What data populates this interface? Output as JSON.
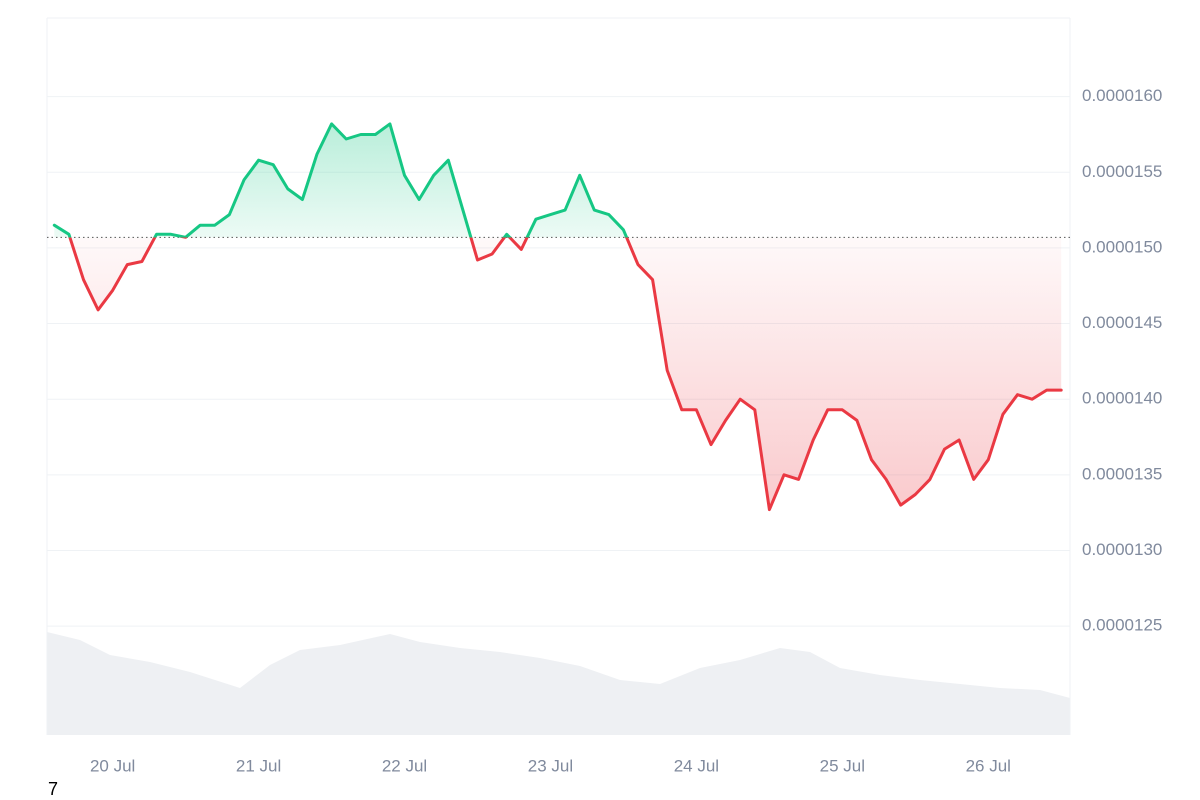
{
  "chart_data": {
    "type": "line",
    "x": [
      19.6,
      19.7,
      19.8,
      19.9,
      20.0,
      20.1,
      20.2,
      20.3,
      20.4,
      20.5,
      20.6,
      20.7,
      20.8,
      20.9,
      21.0,
      21.1,
      21.2,
      21.3,
      21.4,
      21.5,
      21.6,
      21.7,
      21.8,
      21.9,
      22.0,
      22.1,
      22.2,
      22.3,
      22.4,
      22.5,
      22.6,
      22.7,
      22.8,
      22.9,
      23.0,
      23.1,
      23.2,
      23.3,
      23.4,
      23.5,
      23.6,
      23.7,
      23.8,
      23.9,
      24.0,
      24.1,
      24.2,
      24.3,
      24.4,
      24.5,
      24.6,
      24.7,
      24.8,
      24.9,
      25.0,
      25.1,
      25.2,
      25.3,
      25.4,
      25.5,
      25.6,
      25.7,
      25.8,
      25.9,
      26.0,
      26.1,
      26.2,
      26.3,
      26.4,
      26.5
    ],
    "values": [
      1.515e-05,
      1.509e-05,
      1.479e-05,
      1.459e-05,
      1.472e-05,
      1.489e-05,
      1.491e-05,
      1.509e-05,
      1.509e-05,
      1.507e-05,
      1.515e-05,
      1.515e-05,
      1.522e-05,
      1.545e-05,
      1.558e-05,
      1.555e-05,
      1.539e-05,
      1.532e-05,
      1.562e-05,
      1.582e-05,
      1.572e-05,
      1.575e-05,
      1.575e-05,
      1.582e-05,
      1.548e-05,
      1.532e-05,
      1.548e-05,
      1.558e-05,
      1.525e-05,
      1.492e-05,
      1.496e-05,
      1.509e-05,
      1.499e-05,
      1.519e-05,
      1.522e-05,
      1.525e-05,
      1.548e-05,
      1.525e-05,
      1.522e-05,
      1.512e-05,
      1.489e-05,
      1.479e-05,
      1.419e-05,
      1.393e-05,
      1.393e-05,
      1.37e-05,
      1.386e-05,
      1.4e-05,
      1.393e-05,
      1.327e-05,
      1.35e-05,
      1.347e-05,
      1.373e-05,
      1.393e-05,
      1.393e-05,
      1.386e-05,
      1.36e-05,
      1.347e-05,
      1.33e-05,
      1.337e-05,
      1.347e-05,
      1.367e-05,
      1.373e-05,
      1.347e-05,
      1.36e-05,
      1.39e-05,
      1.403e-05,
      1.4e-05,
      1.406e-05,
      1.406e-05
    ],
    "baseline": 1.507e-05,
    "up_color": "#16c784",
    "down_color": "#ea3943",
    "xlim": [
      19.55,
      26.56
    ],
    "xticks": [
      {
        "value": 20,
        "label": "20 Jul"
      },
      {
        "value": 21,
        "label": "21 Jul"
      },
      {
        "value": 22,
        "label": "22 Jul"
      },
      {
        "value": 23,
        "label": "23 Jul"
      },
      {
        "value": 24,
        "label": "24 Jul"
      },
      {
        "value": 25,
        "label": "25 Jul"
      },
      {
        "value": 26,
        "label": "26 Jul"
      }
    ],
    "ylim": [
      1.178e-05,
      1.652e-05
    ],
    "yticks": [
      {
        "value": 1.6e-05,
        "label": "0.0000160"
      },
      {
        "value": 1.55e-05,
        "label": "0.0000155"
      },
      {
        "value": 1.5e-05,
        "label": "0.0000150"
      },
      {
        "value": 1.45e-05,
        "label": "0.0000145"
      },
      {
        "value": 1.4e-05,
        "label": "0.0000140"
      },
      {
        "value": 1.35e-05,
        "label": "0.0000135"
      },
      {
        "value": 1.3e-05,
        "label": "0.0000130"
      },
      {
        "value": 1.25e-05,
        "label": "0.0000125"
      }
    ],
    "grid": true,
    "footer_label": "7"
  }
}
